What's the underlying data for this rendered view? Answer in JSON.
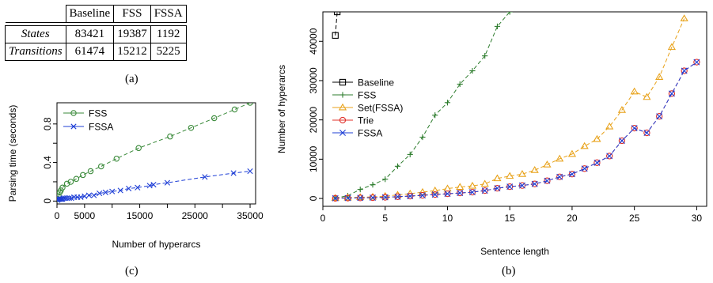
{
  "table": {
    "header": [
      "",
      "Baseline",
      "FSS",
      "FSSA"
    ],
    "rows": [
      {
        "label": "States",
        "values": [
          "83421",
          "19387",
          "1192"
        ]
      },
      {
        "label": "Transitions",
        "values": [
          "61474",
          "15212",
          "5225"
        ]
      }
    ]
  },
  "captions": {
    "a": "(a)",
    "c": "(c)",
    "b": "(b)"
  },
  "chart_data": [
    {
      "id": "c",
      "type": "scatter",
      "title": "",
      "xlabel": "Number of hyperarcs",
      "ylabel": "Parsing time (seconds)",
      "xlim": [
        0,
        36000
      ],
      "ylim": [
        -0.03,
        1.02
      ],
      "xticks": [
        0,
        5000,
        15000,
        25000,
        35000
      ],
      "yticks": [
        0.0,
        0.4,
        0.8
      ],
      "yticks_minor": [
        0.2,
        0.6
      ],
      "xticks_minor": [
        10000,
        20000,
        30000
      ],
      "grid": false,
      "legend": "top-left",
      "series": [
        {
          "name": "FSS",
          "color": "#3a8a3a",
          "marker": "circle",
          "x": [
            150,
            300,
            500,
            700,
            1000,
            1800,
            2500,
            3500,
            4700,
            6100,
            8000,
            10800,
            14800,
            20500,
            24300,
            28500,
            32200,
            35000
          ],
          "y": [
            0.02,
            0.05,
            0.09,
            0.11,
            0.14,
            0.18,
            0.2,
            0.23,
            0.27,
            0.31,
            0.36,
            0.44,
            0.55,
            0.67,
            0.76,
            0.86,
            0.95,
            1.02
          ]
        },
        {
          "name": "FSSA",
          "color": "#1f3fd6",
          "marker": "x",
          "x": [
            100,
            200,
            300,
            400,
            600,
            800,
            1000,
            1200,
            1500,
            1800,
            2200,
            2600,
            3100,
            3700,
            4300,
            5000,
            5800,
            6700,
            7700,
            8800,
            10000,
            11500,
            13000,
            14600,
            16800,
            17500,
            20000,
            26800,
            32000,
            35000
          ],
          "y": [
            0.01,
            0.02,
            0.02,
            0.02,
            0.02,
            0.02,
            0.02,
            0.03,
            0.03,
            0.03,
            0.03,
            0.03,
            0.04,
            0.04,
            0.04,
            0.05,
            0.06,
            0.06,
            0.08,
            0.09,
            0.1,
            0.11,
            0.13,
            0.14,
            0.16,
            0.17,
            0.19,
            0.25,
            0.29,
            0.31
          ]
        }
      ]
    },
    {
      "id": "b",
      "type": "line",
      "title": "",
      "xlabel": "Sentence length",
      "ylabel": "Number of hyperarcs",
      "xlim": [
        0,
        30.8
      ],
      "ylim": [
        -2000,
        47500
      ],
      "xticks": [
        0,
        5,
        10,
        15,
        20,
        25,
        30
      ],
      "yticks": [
        0,
        10000,
        20000,
        30000,
        40000
      ],
      "grid": false,
      "legend": "center-left",
      "series": [
        {
          "name": "Baseline",
          "color": "#000000",
          "marker": "square",
          "x": [
            1,
            1.15
          ],
          "y": [
            41500,
            47500
          ]
        },
        {
          "name": "FSS",
          "color": "#2e7d2e",
          "marker": "plus",
          "x": [
            1,
            2,
            3,
            4,
            5,
            6,
            7,
            8,
            9,
            10,
            11,
            12,
            13,
            14,
            15
          ],
          "y": [
            100,
            700,
            2300,
            3500,
            4900,
            8200,
            11200,
            15600,
            21200,
            24400,
            29100,
            32500,
            36300,
            43800,
            47500
          ]
        },
        {
          "name": "Set(FSSA)",
          "color": "#e8a21a",
          "marker": "triangle",
          "x": [
            1,
            2,
            3,
            4,
            5,
            6,
            7,
            8,
            9,
            10,
            11,
            12,
            13,
            14,
            15,
            16,
            17,
            18,
            19,
            20,
            21,
            22,
            23,
            24,
            25,
            26,
            27,
            28,
            29
          ],
          "y": [
            100,
            200,
            300,
            400,
            600,
            900,
            1200,
            1600,
            2000,
            2500,
            2900,
            3200,
            3700,
            5100,
            5700,
            6200,
            7200,
            8600,
            10100,
            11300,
            13300,
            15100,
            18300,
            22500,
            27200,
            25800,
            30900,
            38500,
            45800
          ]
        },
        {
          "name": "Trie",
          "color": "#e0302a",
          "marker": "circle",
          "x": [
            1,
            2,
            3,
            4,
            5,
            6,
            7,
            8,
            9,
            10,
            11,
            12,
            13,
            14,
            15,
            16,
            17,
            18,
            19,
            20,
            21,
            22,
            23,
            24,
            25,
            26,
            27,
            28,
            29,
            30
          ],
          "y": [
            50,
            100,
            150,
            200,
            300,
            450,
            600,
            800,
            1000,
            1200,
            1400,
            1600,
            2000,
            2600,
            3000,
            3300,
            3700,
            4500,
            5500,
            6200,
            7600,
            9100,
            10800,
            14700,
            17900,
            16700,
            20900,
            26700,
            32500,
            34700
          ]
        },
        {
          "name": "FSSA",
          "color": "#1f3fd6",
          "marker": "x",
          "x": [
            1,
            2,
            3,
            4,
            5,
            6,
            7,
            8,
            9,
            10,
            11,
            12,
            13,
            14,
            15,
            16,
            17,
            18,
            19,
            20,
            21,
            22,
            23,
            24,
            25,
            26,
            27,
            28,
            29,
            30
          ],
          "y": [
            50,
            100,
            150,
            200,
            300,
            450,
            600,
            800,
            1000,
            1200,
            1400,
            1600,
            2000,
            2600,
            3000,
            3300,
            3700,
            4500,
            5500,
            6200,
            7600,
            9100,
            10800,
            14700,
            17900,
            16700,
            20900,
            26700,
            32500,
            34700
          ]
        }
      ]
    }
  ]
}
